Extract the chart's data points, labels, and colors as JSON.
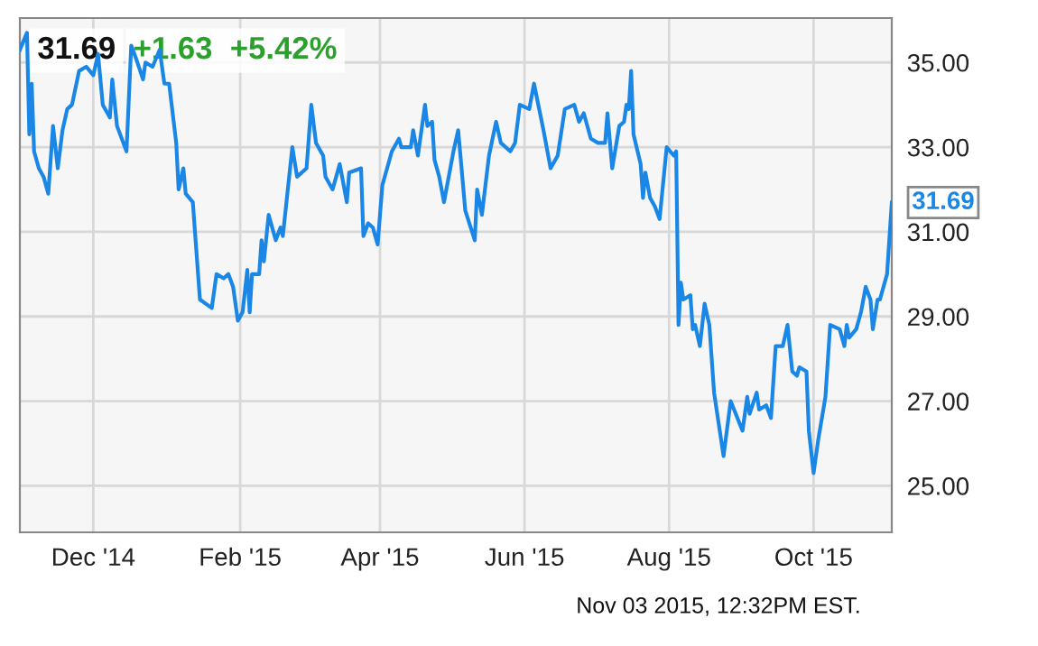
{
  "chart_data": {
    "type": "line",
    "title": "31.69",
    "subtitle": "+1.63  +5.42%",
    "x": [
      "2014-10-31",
      "2014-11-03",
      "2014-11-04",
      "2014-11-05",
      "2014-11-06",
      "2014-11-08",
      "2014-11-10",
      "2014-11-12",
      "2014-11-14",
      "2014-11-16",
      "2014-11-18",
      "2014-11-20",
      "2014-11-22",
      "2014-11-25",
      "2014-11-28",
      "2014-12-01",
      "2014-12-03",
      "2014-12-05",
      "2014-12-08",
      "2014-12-09",
      "2014-12-11",
      "2014-12-15",
      "2014-12-17",
      "2014-12-19",
      "2014-12-22",
      "2014-12-23",
      "2014-12-26",
      "2014-12-29",
      "2014-12-31",
      "2015-01-02",
      "2015-01-05",
      "2015-01-06",
      "2015-01-08",
      "2015-01-09",
      "2015-01-12",
      "2015-01-15",
      "2015-01-20",
      "2015-01-22",
      "2015-01-25",
      "2015-01-27",
      "2015-01-29",
      "2015-01-31",
      "2015-02-02",
      "2015-02-04",
      "2015-02-05",
      "2015-02-06",
      "2015-02-09",
      "2015-02-10",
      "2015-02-11",
      "2015-02-13",
      "2015-02-16",
      "2015-02-18",
      "2015-02-19",
      "2015-02-23",
      "2015-02-25",
      "2015-03-01",
      "2015-03-03",
      "2015-03-05",
      "2015-03-08",
      "2015-03-09",
      "2015-03-12",
      "2015-03-15",
      "2015-03-18",
      "2015-03-19",
      "2015-03-24",
      "2015-03-25",
      "2015-03-27",
      "2015-03-29",
      "2015-03-31",
      "2015-04-02",
      "2015-04-06",
      "2015-04-09",
      "2015-04-10",
      "2015-04-14",
      "2015-04-15",
      "2015-04-17",
      "2015-04-20",
      "2015-04-21",
      "2015-04-23",
      "2015-04-24",
      "2015-04-26",
      "2015-04-28",
      "2015-05-02",
      "2015-05-04",
      "2015-05-07",
      "2015-05-11",
      "2015-05-12",
      "2015-05-14",
      "2015-05-17",
      "2015-05-20",
      "2015-05-22",
      "2015-05-26",
      "2015-05-28",
      "2015-05-30",
      "2015-06-03",
      "2015-06-05",
      "2015-06-09",
      "2015-06-12",
      "2015-06-15",
      "2015-06-18",
      "2015-06-22",
      "2015-06-24",
      "2015-06-26",
      "2015-06-29",
      "2015-07-02",
      "2015-07-05",
      "2015-07-06",
      "2015-07-08",
      "2015-07-11",
      "2015-07-13",
      "2015-07-14",
      "2015-07-15",
      "2015-07-16",
      "2015-07-17",
      "2015-07-20",
      "2015-07-21",
      "2015-07-22",
      "2015-07-24",
      "2015-07-26",
      "2015-07-28",
      "2015-07-31",
      "2015-08-03",
      "2015-08-04",
      "2015-08-05",
      "2015-08-06",
      "2015-08-07",
      "2015-08-10",
      "2015-08-11",
      "2015-08-12",
      "2015-08-14",
      "2015-08-16",
      "2015-08-18",
      "2015-08-20",
      "2015-08-24",
      "2015-08-27",
      "2015-09-01",
      "2015-09-03",
      "2015-09-04",
      "2015-09-07",
      "2015-09-08",
      "2015-09-11",
      "2015-09-13",
      "2015-09-15",
      "2015-09-18",
      "2015-09-20",
      "2015-09-22",
      "2015-09-24",
      "2015-09-25",
      "2015-09-28",
      "2015-09-29",
      "2015-10-01",
      "2015-10-03",
      "2015-10-06",
      "2015-10-08",
      "2015-10-12",
      "2015-10-14",
      "2015-10-15",
      "2015-10-16",
      "2015-10-19",
      "2015-10-21",
      "2015-10-23",
      "2015-10-25",
      "2015-10-26",
      "2015-10-28",
      "2015-10-29",
      "2015-11-01",
      "2015-11-03"
    ],
    "series": [
      {
        "color": "#1a87e6",
        "values": [
          35.3,
          35.7,
          33.3,
          34.5,
          32.9,
          32.5,
          32.3,
          31.9,
          33.5,
          32.5,
          33.4,
          33.9,
          34.0,
          34.8,
          34.9,
          34.7,
          35.2,
          34.0,
          33.7,
          34.6,
          33.5,
          32.9,
          35.4,
          35.1,
          34.6,
          35.0,
          34.9,
          35.3,
          34.5,
          34.5,
          33.1,
          32.0,
          32.5,
          31.9,
          31.7,
          29.4,
          29.2,
          30.0,
          29.9,
          30.0,
          29.7,
          28.9,
          29.1,
          30.1,
          29.1,
          30.0,
          30.0,
          30.8,
          30.3,
          31.4,
          30.8,
          31.1,
          30.9,
          33.0,
          32.3,
          32.5,
          34.0,
          33.1,
          32.8,
          32.3,
          32.0,
          32.6,
          31.7,
          32.4,
          32.5,
          30.9,
          31.2,
          31.1,
          30.7,
          32.1,
          32.9,
          33.2,
          33.0,
          33.0,
          33.4,
          32.8,
          34.0,
          33.5,
          33.6,
          32.7,
          32.3,
          31.7,
          32.9,
          33.4,
          31.5,
          30.8,
          32.0,
          31.4,
          32.8,
          33.6,
          33.1,
          32.9,
          33.1,
          34.0,
          33.9,
          34.5,
          33.4,
          32.5,
          32.8,
          33.9,
          34.0,
          33.6,
          33.8,
          33.2,
          33.1,
          33.1,
          33.8,
          32.5,
          33.5,
          33.6,
          34.0,
          33.9,
          34.8,
          33.3,
          32.6,
          31.8,
          32.4,
          31.8,
          31.6,
          31.3,
          33.0,
          32.8,
          32.9,
          28.8,
          29.8,
          29.4,
          29.5,
          28.7,
          28.8,
          28.3,
          29.3,
          28.8,
          27.2,
          25.7,
          27.0,
          26.3,
          27.1,
          26.7,
          27.2,
          26.8,
          26.9,
          26.6,
          28.3,
          28.3,
          28.8,
          27.7,
          27.6,
          27.8,
          27.7,
          26.3,
          25.3,
          26.1,
          27.1,
          28.8,
          28.7,
          28.3,
          28.8,
          28.5,
          28.7,
          29.1,
          29.7,
          29.4,
          28.7,
          29.4,
          29.4,
          30.0,
          31.69
        ]
      }
    ],
    "xlim": [
      "2014-10-31",
      "2015-11-03"
    ],
    "xticks": [
      {
        "value": "2014-12-01",
        "label": "Dec '14"
      },
      {
        "value": "2015-02-01",
        "label": "Feb '15"
      },
      {
        "value": "2015-04-01",
        "label": "Apr '15"
      },
      {
        "value": "2015-06-01",
        "label": "Jun '15"
      },
      {
        "value": "2015-08-01",
        "label": "Aug '15"
      },
      {
        "value": "2015-10-01",
        "label": "Oct '15"
      }
    ],
    "ylim": [
      23.9,
      36.05
    ],
    "yticks": [
      {
        "value": 25,
        "label": "25.00"
      },
      {
        "value": 27,
        "label": "27.00"
      },
      {
        "value": 29,
        "label": "29.00"
      },
      {
        "value": 31,
        "label": "31.00"
      },
      {
        "value": 33,
        "label": "33.00"
      },
      {
        "value": 35,
        "label": "35.00"
      }
    ],
    "grid": true,
    "marker": "none",
    "line_style": "solid",
    "annotations": [
      {
        "text": "31.69",
        "x": "2015-11-03",
        "y": 31.69
      },
      "Nov 03 2015, 12:32PM EST."
    ]
  }
}
